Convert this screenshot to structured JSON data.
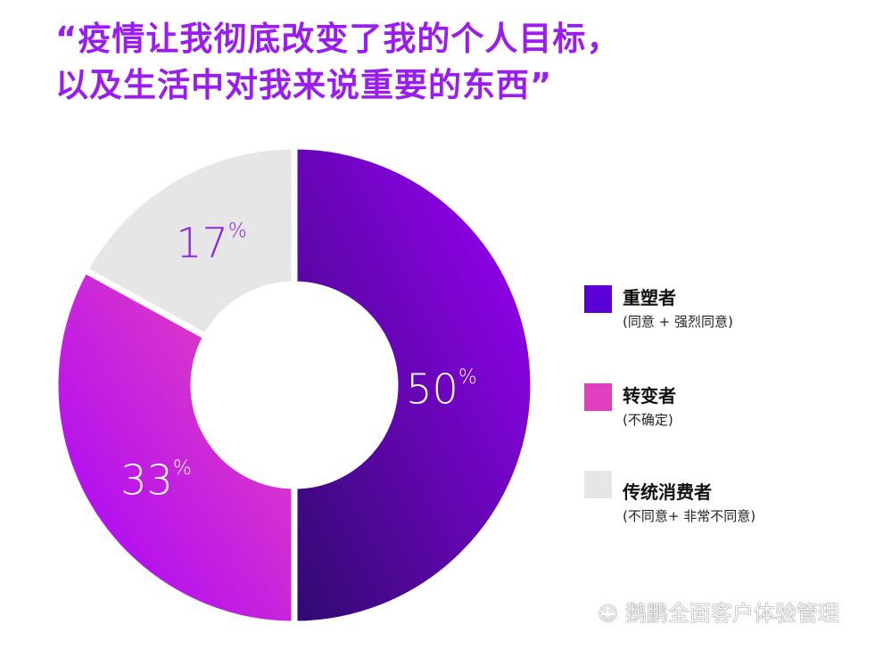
{
  "title": {
    "line1": "“疫情让我彻底改变了我的个人目标，",
    "line2": "以及生活中对我来说重要的东西”"
  },
  "chart_data": {
    "type": "pie",
    "donut": true,
    "slices": [
      {
        "label": "重塑者",
        "sublabel": "(同意 + 强烈同意)",
        "value": 50,
        "display": "50",
        "color": "#5a00d6",
        "gradient": [
          "#2f0a6e",
          "#a100ff"
        ]
      },
      {
        "label": "转变者",
        "sublabel": "(不确定)",
        "value": 33,
        "display": "33",
        "color": "#e040c0",
        "gradient": [
          "#a100ff",
          "#f04ab8"
        ]
      },
      {
        "label": "传统消费者",
        "sublabel": "(不同意+ 非常不同意)",
        "value": 17,
        "display": "17",
        "color": "#e6e6e6",
        "gradient": [
          "#e6e6e6",
          "#e6e6e6"
        ]
      }
    ],
    "unit": "%",
    "label_colors": [
      "#ffffff",
      "#ffffff",
      "#8a1ce0"
    ],
    "legend_position": "right"
  },
  "watermark": {
    "icon": "wechat-icon",
    "text": "鹅鹏全面客户体验管理"
  }
}
